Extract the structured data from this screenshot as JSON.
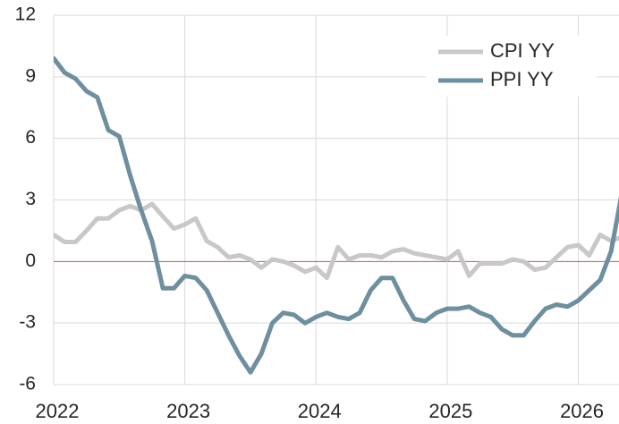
{
  "chart_data": {
    "type": "line",
    "x": [
      2022,
      2022.083,
      2022.167,
      2022.25,
      2022.333,
      2022.417,
      2022.5,
      2022.583,
      2022.667,
      2022.75,
      2022.833,
      2022.917,
      2023,
      2023.083,
      2023.167,
      2023.25,
      2023.333,
      2023.417,
      2023.5,
      2023.583,
      2023.667,
      2023.75,
      2023.833,
      2023.917,
      2024,
      2024.083,
      2024.167,
      2024.25,
      2024.333,
      2024.417,
      2024.5,
      2024.583,
      2024.667,
      2024.75,
      2024.833,
      2024.917,
      2025,
      2025.083,
      2025.167,
      2025.25,
      2025.333,
      2025.417,
      2025.5,
      2025.583,
      2025.667,
      2025.75,
      2025.833,
      2025.917,
      2026,
      2026.083,
      2026.167,
      2026.25,
      2026.333
    ],
    "series": [
      {
        "name": "CPI YY",
        "color": "#c8c8c8",
        "values": [
          1.3,
          0.95,
          0.95,
          1.5,
          2.1,
          2.1,
          2.5,
          2.7,
          2.5,
          2.8,
          2.2,
          1.6,
          1.8,
          2.1,
          1.0,
          0.7,
          0.2,
          0.3,
          0.1,
          -0.3,
          0.1,
          0.0,
          -0.2,
          -0.5,
          -0.3,
          -0.8,
          0.7,
          0.1,
          0.3,
          0.3,
          0.2,
          0.5,
          0.6,
          0.4,
          0.3,
          0.2,
          0.1,
          0.5,
          -0.7,
          -0.1,
          -0.1,
          -0.1,
          0.1,
          0.0,
          -0.4,
          -0.3,
          0.2,
          0.7,
          0.8,
          0.3,
          1.3,
          1.0,
          1.2
        ]
      },
      {
        "name": "PPI YY",
        "color": "#6e8fa0",
        "values": [
          9.9,
          9.2,
          8.9,
          8.3,
          8.0,
          6.4,
          6.1,
          4.2,
          2.5,
          1.0,
          -1.3,
          -1.3,
          -0.7,
          -0.8,
          -1.4,
          -2.5,
          -3.6,
          -4.6,
          -5.4,
          -4.5,
          -3.0,
          -2.5,
          -2.6,
          -3.0,
          -2.7,
          -2.5,
          -2.7,
          -2.8,
          -2.5,
          -1.4,
          -0.8,
          -0.8,
          -1.9,
          -2.8,
          -2.9,
          -2.5,
          -2.3,
          -2.3,
          -2.2,
          -2.5,
          -2.7,
          -3.3,
          -3.6,
          -3.6,
          -2.9,
          -2.3,
          -2.1,
          -2.2,
          -1.9,
          -1.4,
          -0.9,
          0.5,
          3.4
        ]
      }
    ],
    "xlim": [
      2022,
      2026.31
    ],
    "xticks": [
      2022,
      2023,
      2024,
      2025,
      2026
    ],
    "ylim": [
      -6,
      12
    ],
    "yticks": [
      -6,
      -3,
      0,
      3,
      6,
      9,
      12
    ],
    "grid": true,
    "legend": "upper right"
  }
}
